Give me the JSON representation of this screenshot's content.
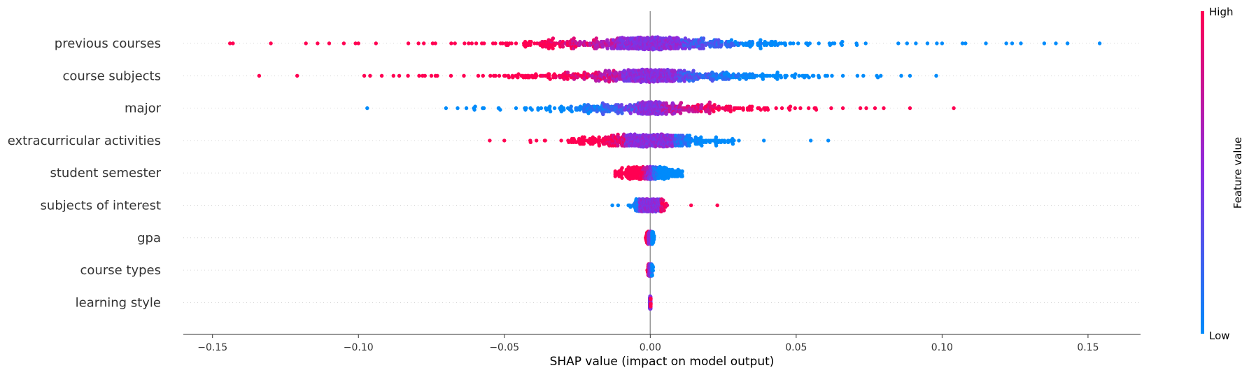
{
  "chart_data": {
    "type": "scatter",
    "subtype": "shap-beeswarm",
    "features": [
      {
        "name": "previous courses",
        "min": -0.144,
        "max": 0.154,
        "spread": 0.042,
        "core": 0.009,
        "n": 780,
        "direction": -1,
        "outliers": [
          -0.144,
          -0.143,
          -0.13,
          -0.118,
          -0.114,
          -0.11,
          -0.105,
          -0.101,
          -0.1,
          -0.094,
          0.085,
          0.088,
          0.091,
          0.095,
          0.1,
          0.107,
          0.108,
          0.115,
          0.122,
          0.124,
          0.127,
          0.135,
          0.139,
          0.143,
          0.154
        ]
      },
      {
        "name": "course subjects",
        "min": -0.134,
        "max": 0.098,
        "spread": 0.038,
        "core": 0.008,
        "n": 720,
        "direction": -1,
        "outliers": [
          -0.134,
          -0.121,
          -0.098,
          -0.096,
          -0.092,
          -0.088,
          -0.086,
          -0.083,
          -0.078,
          -0.075,
          -0.073,
          0.066,
          0.071,
          0.073,
          0.078,
          0.079,
          0.086,
          0.089,
          0.098
        ]
      },
      {
        "name": "major",
        "min": -0.097,
        "max": 0.105,
        "spread": 0.03,
        "core": 0.003,
        "n": 560,
        "direction": 1,
        "outliers": [
          -0.097,
          -0.07,
          -0.066,
          -0.063,
          -0.06,
          -0.057,
          -0.052,
          -0.046,
          -0.043,
          0.062,
          0.066,
          0.072,
          0.074,
          0.077,
          0.08,
          0.089,
          0.104
        ]
      },
      {
        "name": "extracurricular activities",
        "min": -0.055,
        "max": 0.061,
        "spread": 0.02,
        "core": 0.007,
        "n": 620,
        "direction": -1,
        "outliers": [
          -0.055,
          -0.05,
          -0.041,
          -0.039,
          -0.036,
          0.055,
          0.061
        ]
      },
      {
        "name": "student semester",
        "min": -0.012,
        "max": 0.011,
        "spread": 0.007,
        "core": 0.0,
        "n": 520,
        "direction": -1,
        "outliers": []
      },
      {
        "name": "subjects of interest",
        "min": -0.013,
        "max": 0.023,
        "spread": 0.004,
        "core": 0.003,
        "n": 420,
        "direction": 1,
        "outliers": [
          -0.013,
          -0.011,
          0.014,
          0.023
        ]
      },
      {
        "name": "gpa",
        "min": -0.002,
        "max": 0.002,
        "spread": 0.0008,
        "core": 0.0005,
        "n": 260,
        "direction": -1,
        "outliers": []
      },
      {
        "name": "course types",
        "min": -0.001,
        "max": 0.003,
        "spread": 0.0005,
        "core": 0.0003,
        "n": 220,
        "direction": -1,
        "outliers": []
      },
      {
        "name": "learning style",
        "min": -0.0003,
        "max": 0.0003,
        "spread": 0.0001,
        "core": 0.0001,
        "n": 200,
        "direction": 1,
        "outliers": []
      }
    ],
    "xlim": [
      -0.16,
      0.168
    ],
    "xticks": [
      -0.15,
      -0.1,
      -0.05,
      0.0,
      0.05,
      0.1,
      0.15
    ],
    "xtick_labels": [
      "−0.15",
      "−0.10",
      "−0.05",
      "0.00",
      "0.05",
      "0.10",
      "0.15"
    ],
    "xlabel": "SHAP value (impact on model output)",
    "colorbar": {
      "label": "Feature value",
      "high_label": "High",
      "low_label": "Low"
    },
    "colors": {
      "low": "#008bfb",
      "mid": "#8a2be2",
      "high": "#ff0052",
      "zero_line": "#999999",
      "grid": "#cccccc"
    },
    "grid": "horizontal-dotted",
    "legend": "colorbar-right"
  }
}
